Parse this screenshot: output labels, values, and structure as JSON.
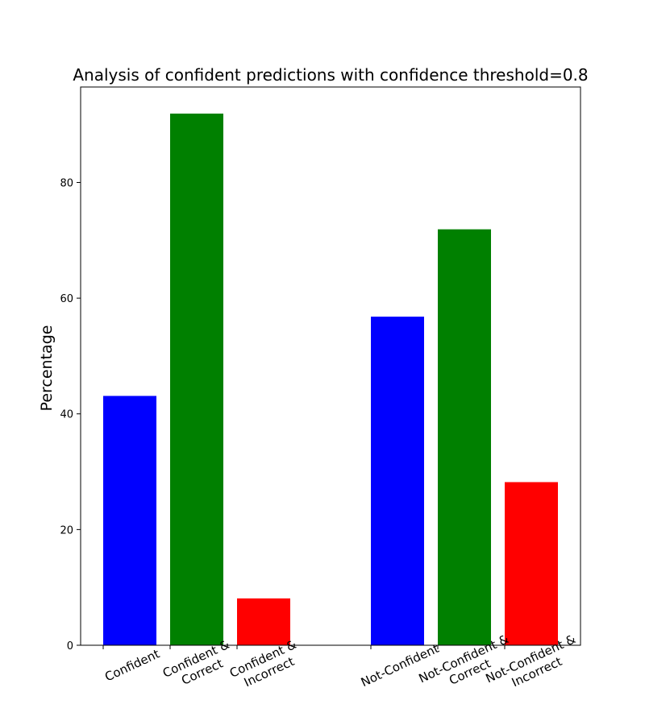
{
  "chart_data": {
    "type": "bar",
    "title": "Analysis of confident predictions with confidence threshold=0.8",
    "xlabel": "",
    "ylabel": "Percentage",
    "ylim": [
      0,
      96.5
    ],
    "yticks": [
      0,
      20,
      40,
      60,
      80
    ],
    "grid": false,
    "bars": [
      {
        "label": [
          "Confident"
        ],
        "value": 43.1,
        "color": "#0000ff",
        "x": 0
      },
      {
        "label": [
          "Confident &",
          "Correct"
        ],
        "value": 91.9,
        "color": "#008000",
        "x": 1
      },
      {
        "label": [
          "Confident &",
          "Incorrect"
        ],
        "value": 8.1,
        "color": "#ff0000",
        "x": 2
      },
      {
        "label": [
          "Not-Confident"
        ],
        "value": 56.8,
        "color": "#0000ff",
        "x": 4
      },
      {
        "label": [
          "Not-Confident &",
          "Correct"
        ],
        "value": 71.9,
        "color": "#008000",
        "x": 5
      },
      {
        "label": [
          "Not-Confident &",
          "Incorrect"
        ],
        "value": 28.2,
        "color": "#ff0000",
        "x": 6
      }
    ]
  }
}
